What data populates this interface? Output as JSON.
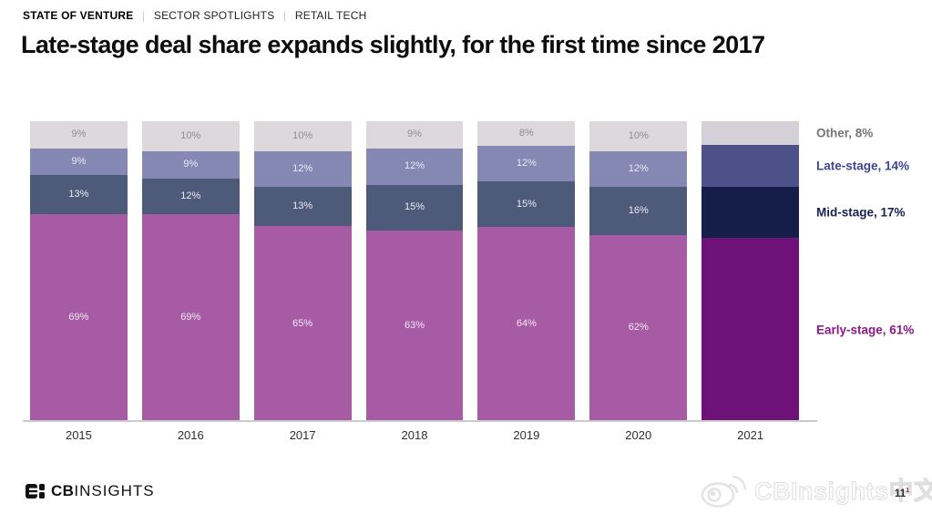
{
  "kicker": {
    "primary": "STATE OF VENTURE",
    "separator": "|",
    "secondary": "SECTOR SPOTLIGHTS",
    "tertiary": "RETAIL TECH"
  },
  "title": "Late-stage deal share expands slightly, for the first time since 2017",
  "chart_data": {
    "type": "bar",
    "stacked": true,
    "unit": "%",
    "categories": [
      "2015",
      "2016",
      "2017",
      "2018",
      "2019",
      "2020",
      "2021"
    ],
    "series": [
      {
        "name": "Other",
        "values": [
          9,
          10,
          10,
          9,
          8,
          10,
          8
        ],
        "color": "#dcd8dc",
        "final_color": "#d3d0d7",
        "label_color": "#8f8c92",
        "legend_label": "Other, 8%",
        "legend_text_color": "#757577"
      },
      {
        "name": "Late-stage",
        "values": [
          9,
          9,
          12,
          12,
          12,
          12,
          14
        ],
        "color": "#8488b3",
        "final_color": "#4c5189",
        "label_color": "#eceaf3",
        "legend_label": "Late-stage, 14%",
        "legend_text_color": "#3e459a"
      },
      {
        "name": "Mid-stage",
        "values": [
          13,
          12,
          13,
          15,
          15,
          16,
          17
        ],
        "color": "#4e5a7a",
        "final_color": "#151d49",
        "label_color": "#eceaf3",
        "legend_label": "Mid-stage, 17%",
        "legend_text_color": "#1a2155"
      },
      {
        "name": "Early-stage",
        "values": [
          69,
          69,
          65,
          63,
          64,
          62,
          61
        ],
        "color": "#a65ba4",
        "final_color": "#6e1179",
        "label_color": "#f2e9f2",
        "legend_label": "Early-stage, 61%",
        "legend_text_color": "#8c188c"
      }
    ],
    "ylim": [
      0,
      100
    ],
    "grid": false,
    "legend_position": "right",
    "labels_hidden_for_category": "2021",
    "xlabel": "",
    "ylabel": ""
  },
  "footer": {
    "logo_cb": "CB",
    "logo_insights": "INSIGHTS",
    "watermark_text": "CBInsights中文",
    "page_number": "11",
    "page_number_mark": "1"
  }
}
